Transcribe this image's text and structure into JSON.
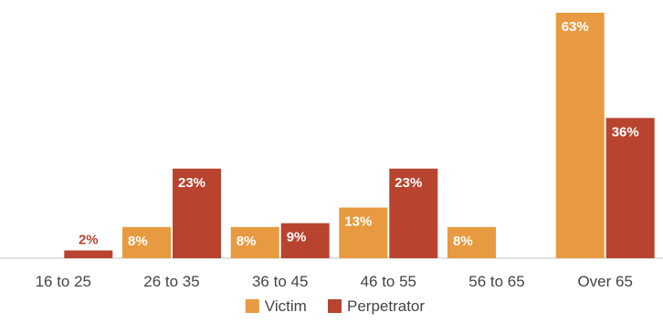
{
  "chart_data": {
    "type": "bar",
    "categories": [
      "16 to 25",
      "26 to 35",
      "36 to 45",
      "46 to 55",
      "56 to 65",
      "Over 65"
    ],
    "series": [
      {
        "name": "Victim",
        "values": [
          null,
          8,
          8,
          13,
          8,
          63
        ],
        "color": "#E89A40",
        "labels": [
          "",
          "8%",
          "8%",
          "13%",
          "8%",
          "63%"
        ]
      },
      {
        "name": "Perpetrator",
        "values": [
          2,
          23,
          9,
          23,
          null,
          36
        ],
        "color": "#B8432F",
        "labels": [
          "2%",
          "23%",
          "9%",
          "23%",
          "",
          "36%"
        ]
      }
    ],
    "ylim": [
      0,
      63
    ],
    "grid": false,
    "legend_position": "bottom",
    "baseline_color": "#D9D9D9",
    "label_colors": {
      "Victim": "#FFFFFF",
      "Perpetrator": "#FFFFFF",
      "outside": "#B8432F"
    }
  }
}
